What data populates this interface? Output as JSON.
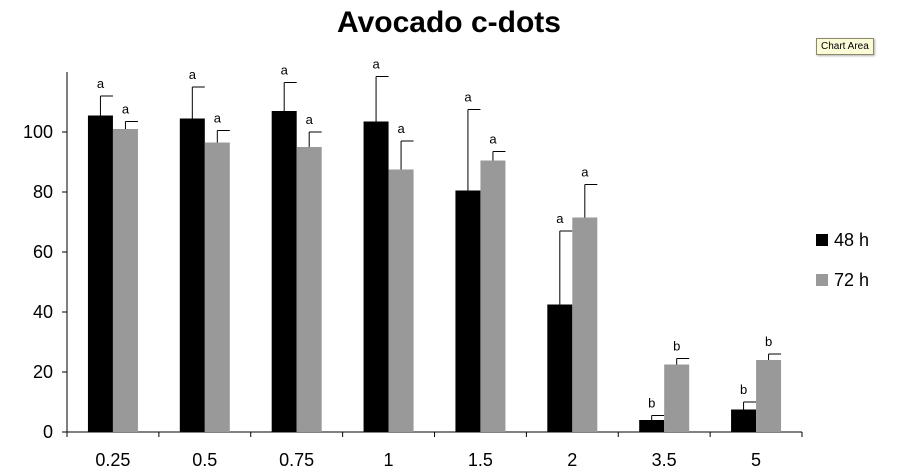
{
  "tooltip": "Chart Area",
  "chart_data": {
    "type": "bar",
    "title": "Avocado c-dots",
    "xlabel": "",
    "ylabel": "",
    "categories": [
      "0.25",
      "0.5",
      "0.75",
      "1",
      "1.5",
      "2",
      "3.5",
      "5"
    ],
    "ylim": [
      0,
      120
    ],
    "yticks": [
      0,
      20,
      40,
      60,
      80,
      100
    ],
    "grid": false,
    "legend_position": "right",
    "series": [
      {
        "name": "48 h",
        "color": "#000000",
        "values": [
          105.5,
          104.5,
          107,
          103.5,
          80.5,
          42.5,
          4,
          7.5
        ],
        "errors": [
          6.5,
          10.5,
          9.5,
          15,
          27,
          24.5,
          1.5,
          2.5
        ],
        "labels": [
          "a",
          "a",
          "a",
          "a",
          "a",
          "a",
          "b",
          "b"
        ]
      },
      {
        "name": "72 h",
        "color": "#999999",
        "values": [
          101,
          96.5,
          95,
          87.5,
          90.5,
          71.5,
          22.5,
          24
        ],
        "errors": [
          2.5,
          4,
          5,
          9.5,
          3,
          11,
          2,
          2
        ],
        "labels": [
          "a",
          "a",
          "a",
          "a",
          "a",
          "a",
          "b",
          "b"
        ]
      }
    ]
  }
}
